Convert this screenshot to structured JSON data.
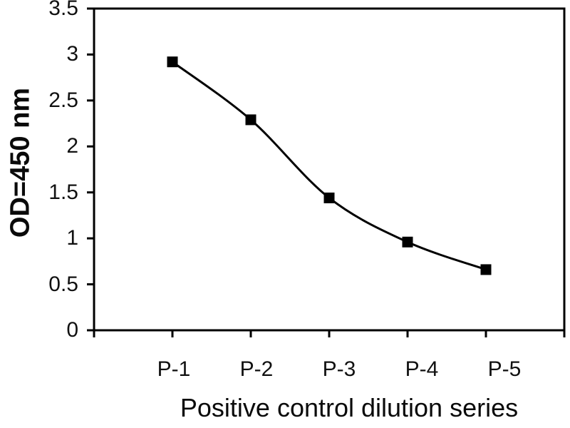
{
  "chart_data": {
    "type": "line",
    "categories": [
      "P-1",
      "P-2",
      "P-3",
      "P-4",
      "P-5"
    ],
    "values": [
      2.92,
      2.29,
      1.44,
      0.96,
      0.66
    ],
    "series_name": "Positive control",
    "xlabel": "Positive control dilution series",
    "ylabel": "OD=450 nm",
    "ylim": [
      0,
      3.5
    ],
    "ytick_labels": [
      "0",
      "0.5",
      "1",
      "1.5",
      "2",
      "2.5",
      "3",
      "3.5"
    ],
    "grid": false,
    "legend": "none",
    "style": {
      "line_color": "#000000",
      "marker": "filled-square",
      "marker_color": "#000000",
      "smooth_line": true,
      "frame": "full-box"
    }
  }
}
